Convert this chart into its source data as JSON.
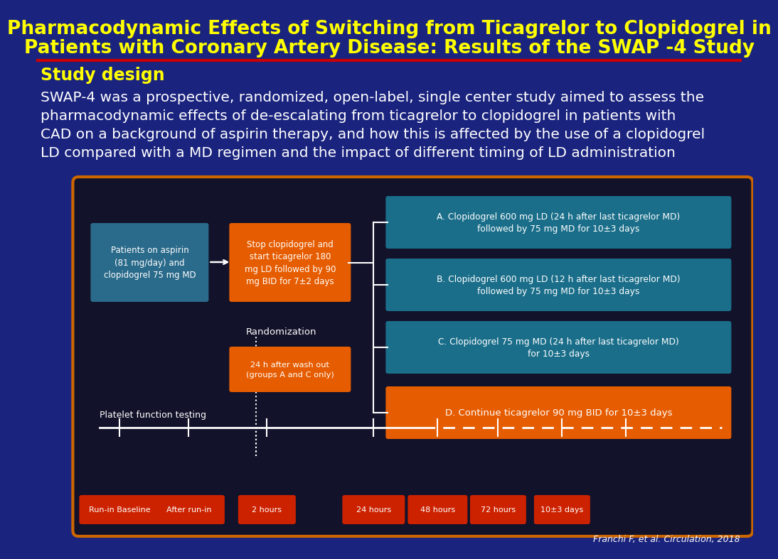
{
  "title_line1": "Pharmacodynamic Effects of Switching from Ticagrelor to Clopidogrel in",
  "title_line2": "Patients with Coronary Artery Disease: Results of the SWAP -4 Study",
  "title_color": "#FFFF00",
  "title_fontsize": 19,
  "bg_color": "#1a237e",
  "section_label": "Study design",
  "section_label_color": "#FFFF00",
  "section_label_fontsize": 17,
  "body_text_lines": [
    "SWAP-4 was a prospective, randomized, open-label, single center study aimed to assess the",
    "pharmacodynamic effects of de-escalating from ticagrelor to clopidogrel in patients with",
    "CAD on a background of aspirin therapy, and how this is affected by the use of a clopidogrel",
    "LD compared with a MD regimen and the impact of different timing of LD administration"
  ],
  "body_color": "#ffffff",
  "body_fontsize": 14.5,
  "diagram_bg": "#12122a",
  "diagram_border": "#cc6600",
  "orange_box_color": "#e65c00",
  "teal_box_color": "#1a6e8a",
  "red_box_color": "#cc2200",
  "patient_box_color": "#2a6a8a",
  "patient_box_text": "Patients on aspirin\n(81 mg/day) and\nclopidogrel 75 mg MD",
  "stop_box_text": "Stop clopidogrel and\nstart ticagrelor 180\nmg LD followed by 90\nmg BID for 7±2 days",
  "group_a_text": "A. Clopidogrel 600 mg LD (24 h after last ticagrelor MD)\nfollowed by 75 mg MD for 10±3 days",
  "group_b_text": "B. Clopidogrel 600 mg LD (12 h after last ticagrelor MD)\nfollowed by 75 mg MD for 10±3 days",
  "group_c_text": "C. Clopidogrel 75 mg MD (24 h after last ticagrelor MD)\nfor 10±3 days",
  "group_d_text": "D. Continue ticagrelor 90 mg BID for 10±3 days",
  "washout_box_text": "24 h after wash out\n(groups A and C only)",
  "randomization_text": "Randomization",
  "platelet_text": "Platelet function testing",
  "timeline_labels": [
    "Run-in Baseline",
    "After run-in",
    "2 hours",
    "24 hours",
    "48 hours",
    "72 hours",
    "10±3 days"
  ],
  "citation": "Franchi F, et al. Circulation, 2018",
  "red_line_color": "#cc0000"
}
